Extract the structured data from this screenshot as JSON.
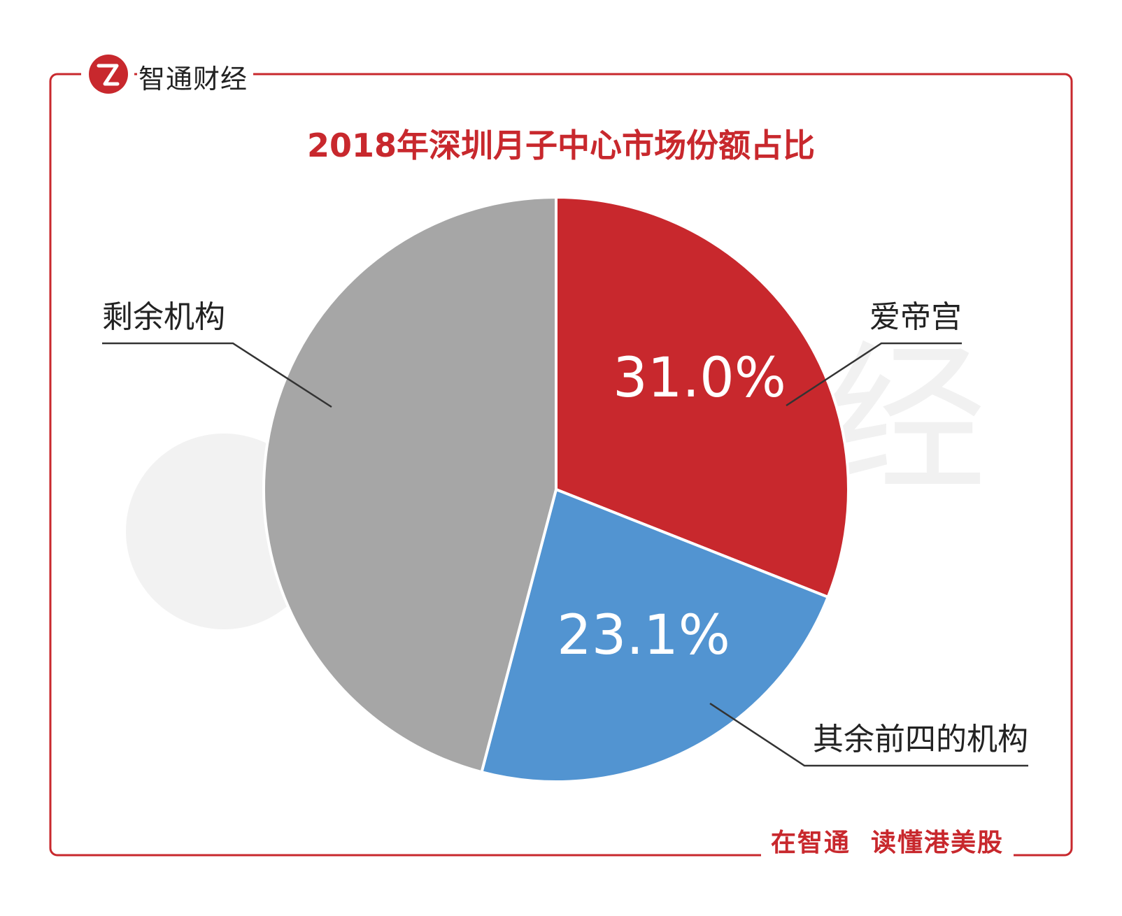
{
  "brand": {
    "logo_text": "智通财经",
    "logo_icon": "zhitong-z6-logo-icon",
    "slogan": "在智通  读懂港美股",
    "accent_color": "#c8282d"
  },
  "chart_data": {
    "type": "pie",
    "title": "2018年深圳月子中心市场份额占比",
    "slices": [
      {
        "label": "爱帝宫",
        "value": 31.0,
        "value_label": "31.0%",
        "color": "#c8282d"
      },
      {
        "label": "其余前四的机构",
        "value": 23.1,
        "value_label": "23.1%",
        "color": "#5294d1"
      },
      {
        "label": "剩余机构",
        "value": 45.9,
        "value_label": "",
        "color": "#a6a6a6"
      }
    ],
    "start": "12 o'clock",
    "direction": "clockwise",
    "legend": "none"
  }
}
